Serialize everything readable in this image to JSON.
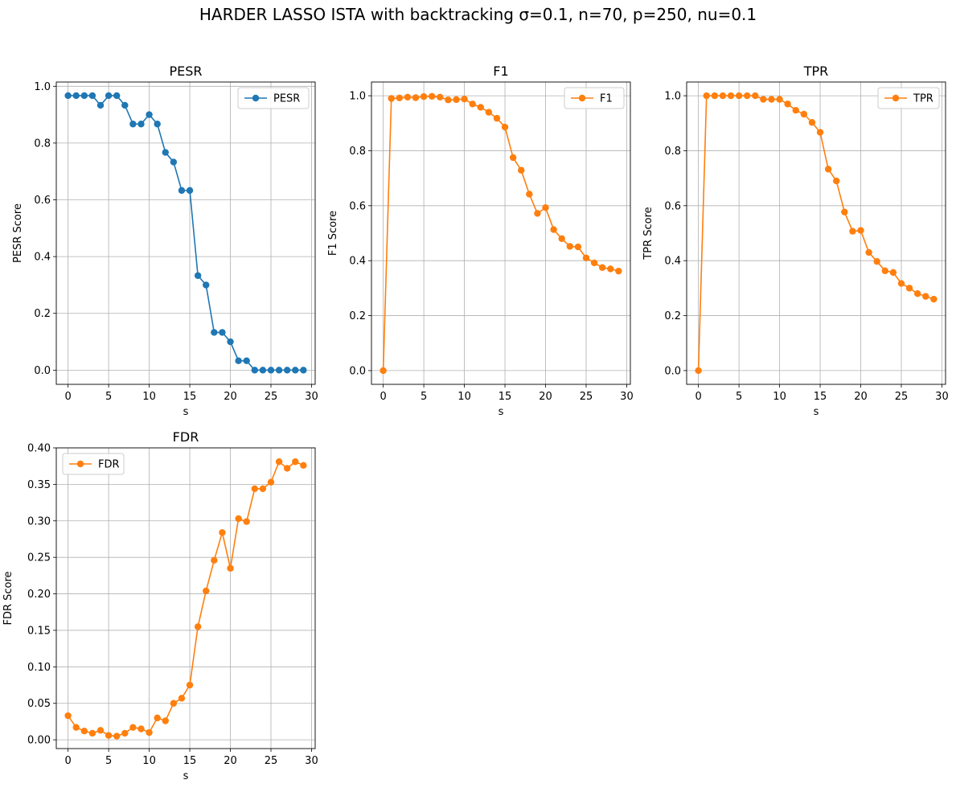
{
  "figure": {
    "title": "HARDER LASSO ISTA with backtracking σ=0.1, n=70, p=250, nu=0.1"
  },
  "chart_data": [
    {
      "type": "line",
      "title": "PESR",
      "xlabel": "s",
      "ylabel": "PESR Score",
      "color": "#1f77b4",
      "marker": "circle",
      "grid": true,
      "legend": "top-right",
      "xlim": [
        -1.45,
        30.45
      ],
      "ylim": [
        -0.05,
        1.015
      ],
      "xticks": [
        0,
        5,
        10,
        15,
        20,
        25,
        30
      ],
      "xtick_labels": [
        "0",
        "5",
        "10",
        "15",
        "20",
        "25",
        "30"
      ],
      "yticks": [
        0.0,
        0.2,
        0.4,
        0.6,
        0.8,
        1.0
      ],
      "ytick_labels": [
        "0.0",
        "0.2",
        "0.4",
        "0.6",
        "0.8",
        "1.0"
      ],
      "series": [
        {
          "name": "PESR",
          "x": [
            0,
            1,
            2,
            3,
            4,
            5,
            6,
            7,
            8,
            9,
            10,
            11,
            12,
            13,
            14,
            15,
            16,
            17,
            18,
            19,
            20,
            21,
            22,
            23,
            24,
            25,
            26,
            27,
            28,
            29
          ],
          "values": [
            0.967,
            0.967,
            0.967,
            0.967,
            0.933,
            0.967,
            0.967,
            0.933,
            0.867,
            0.867,
            0.9,
            0.867,
            0.767,
            0.733,
            0.633,
            0.633,
            0.333,
            0.3,
            0.133,
            0.133,
            0.1,
            0.033,
            0.033,
            0.0,
            0.0,
            0.0,
            0.0,
            0.0,
            0.0,
            0.0
          ]
        }
      ]
    },
    {
      "type": "line",
      "title": "F1",
      "xlabel": "s",
      "ylabel": "F1 Score",
      "color": "#ff7f0e",
      "marker": "circle",
      "grid": true,
      "legend": "top-right",
      "xlim": [
        -1.45,
        30.45
      ],
      "ylim": [
        -0.05,
        1.05
      ],
      "xticks": [
        0,
        5,
        10,
        15,
        20,
        25,
        30
      ],
      "xtick_labels": [
        "0",
        "5",
        "10",
        "15",
        "20",
        "25",
        "30"
      ],
      "yticks": [
        0.0,
        0.2,
        0.4,
        0.6,
        0.8,
        1.0
      ],
      "ytick_labels": [
        "0.0",
        "0.2",
        "0.4",
        "0.6",
        "0.8",
        "1.0"
      ],
      "series": [
        {
          "name": "F1",
          "x": [
            0,
            1,
            2,
            3,
            4,
            5,
            6,
            7,
            8,
            9,
            10,
            11,
            12,
            13,
            14,
            15,
            16,
            17,
            18,
            19,
            20,
            21,
            22,
            23,
            24,
            25,
            26,
            27,
            28,
            29
          ],
          "values": [
            0.0,
            0.99,
            0.992,
            0.995,
            0.993,
            0.997,
            0.998,
            0.995,
            0.985,
            0.986,
            0.988,
            0.97,
            0.958,
            0.94,
            0.918,
            0.886,
            0.775,
            0.729,
            0.642,
            0.572,
            0.593,
            0.513,
            0.48,
            0.452,
            0.45,
            0.41,
            0.392,
            0.375,
            0.37,
            0.362
          ]
        }
      ]
    },
    {
      "type": "line",
      "title": "TPR",
      "xlabel": "s",
      "ylabel": "TPR Score",
      "color": "#ff7f0e",
      "marker": "circle",
      "grid": true,
      "legend": "top-right",
      "xlim": [
        -1.45,
        30.45
      ],
      "ylim": [
        -0.05,
        1.05
      ],
      "xticks": [
        0,
        5,
        10,
        15,
        20,
        25,
        30
      ],
      "xtick_labels": [
        "0",
        "5",
        "10",
        "15",
        "20",
        "25",
        "30"
      ],
      "yticks": [
        0.0,
        0.2,
        0.4,
        0.6,
        0.8,
        1.0
      ],
      "ytick_labels": [
        "0.0",
        "0.2",
        "0.4",
        "0.6",
        "0.8",
        "1.0"
      ],
      "series": [
        {
          "name": "TPR",
          "x": [
            0,
            1,
            2,
            3,
            4,
            5,
            6,
            7,
            8,
            9,
            10,
            11,
            12,
            13,
            14,
            15,
            16,
            17,
            18,
            19,
            20,
            21,
            22,
            23,
            24,
            25,
            26,
            27,
            28,
            29
          ],
          "values": [
            0.0,
            1.0,
            1.0,
            1.0,
            1.0,
            1.0,
            1.0,
            1.0,
            0.987,
            0.987,
            0.987,
            0.97,
            0.947,
            0.933,
            0.903,
            0.867,
            0.733,
            0.69,
            0.577,
            0.507,
            0.51,
            0.43,
            0.397,
            0.363,
            0.357,
            0.317,
            0.3,
            0.28,
            0.27,
            0.26
          ]
        }
      ]
    },
    {
      "type": "line",
      "title": "FDR",
      "xlabel": "s",
      "ylabel": "FDR Score",
      "color": "#ff7f0e",
      "marker": "circle",
      "grid": true,
      "legend": "top-left",
      "xlim": [
        -1.45,
        30.45
      ],
      "ylim": [
        -0.012,
        0.4
      ],
      "xticks": [
        0,
        5,
        10,
        15,
        20,
        25,
        30
      ],
      "xtick_labels": [
        "0",
        "5",
        "10",
        "15",
        "20",
        "25",
        "30"
      ],
      "yticks": [
        0.0,
        0.05,
        0.1,
        0.15,
        0.2,
        0.25,
        0.3,
        0.35,
        0.4
      ],
      "ytick_labels": [
        "0.00",
        "0.05",
        "0.10",
        "0.15",
        "0.20",
        "0.25",
        "0.30",
        "0.35",
        "0.40"
      ],
      "series": [
        {
          "name": "FDR",
          "x": [
            0,
            1,
            2,
            3,
            4,
            5,
            6,
            7,
            8,
            9,
            10,
            11,
            12,
            13,
            14,
            15,
            16,
            17,
            18,
            19,
            20,
            21,
            22,
            23,
            24,
            25,
            26,
            27,
            28,
            29
          ],
          "values": [
            0.033,
            0.017,
            0.012,
            0.009,
            0.013,
            0.006,
            0.005,
            0.009,
            0.017,
            0.015,
            0.01,
            0.03,
            0.026,
            0.05,
            0.057,
            0.075,
            0.155,
            0.204,
            0.246,
            0.284,
            0.235,
            0.303,
            0.299,
            0.344,
            0.344,
            0.353,
            0.381,
            0.372,
            0.381,
            0.376
          ]
        }
      ]
    }
  ]
}
